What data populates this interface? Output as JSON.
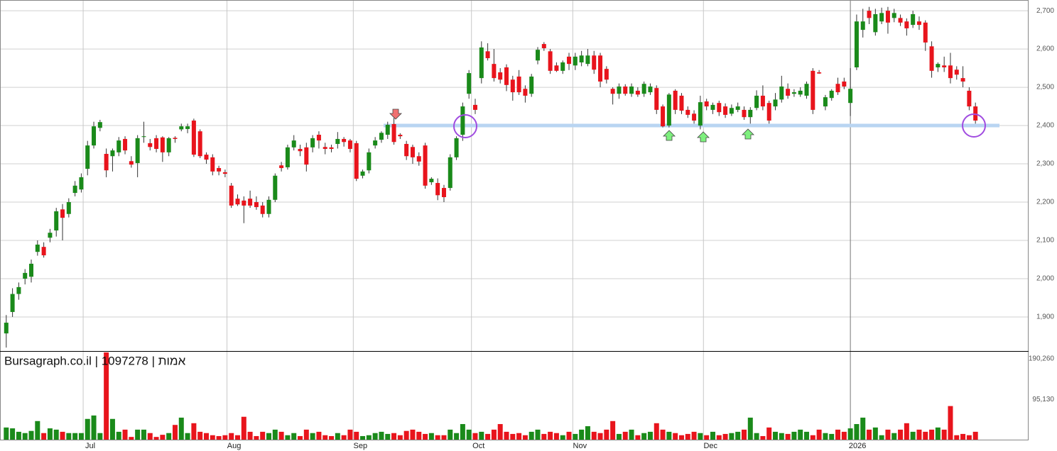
{
  "chart_data": {
    "type": "candlestick",
    "title": "Bursagraph.co.il | 1097278 | אמות",
    "up_color": "#1a8a1a",
    "down_color": "#e8141c",
    "grid": true,
    "ylim": [
      1811,
      2728
    ],
    "yticks": [
      {
        "value": 1900,
        "label": "1,900"
      },
      {
        "value": 2000,
        "label": "2,000"
      },
      {
        "value": 2100,
        "label": "2,100"
      },
      {
        "value": 2200,
        "label": "2,200"
      },
      {
        "value": 2300,
        "label": "2,300"
      },
      {
        "value": 2400,
        "label": "2,400"
      },
      {
        "value": 2500,
        "label": "2,500"
      },
      {
        "value": 2600,
        "label": "2,600"
      },
      {
        "value": 2700,
        "label": "2,700"
      }
    ],
    "xlim": [
      -1,
      163.5
    ],
    "xticks": [
      {
        "value": 12.3,
        "label": "Jul"
      },
      {
        "value": 35.3,
        "label": "Aug"
      },
      {
        "value": 55.5,
        "label": "Sep"
      },
      {
        "value": 74.4,
        "label": "Oct"
      },
      {
        "value": 90.6,
        "label": "Nov"
      },
      {
        "value": 111.5,
        "label": "Dec"
      },
      {
        "value": 135,
        "label": "2026"
      }
    ],
    "volume_ylim": [
      0,
      205000
    ],
    "volume_ticks": [
      {
        "value": 95130,
        "label": "95,130"
      },
      {
        "value": 190260,
        "label": "190,260"
      }
    ],
    "support_level": 2400,
    "open": [
      1857,
      1913,
      1960,
      2000,
      2005,
      2070,
      2083,
      2107,
      2126,
      2181,
      2169,
      2224,
      2233,
      2287,
      2348,
      2394,
      2326,
      2320,
      2330,
      2365,
      2307,
      2302,
      2370,
      2354,
      2367,
      2369,
      2330,
      2368,
      2390,
      2391,
      2413,
      2385,
      2324,
      2317,
      2289,
      2278,
      2243,
      2209,
      2204,
      2209,
      2200,
      2191,
      2169,
      2206,
      2296,
      2291,
      2343,
      2339,
      2343,
      2343,
      2376,
      2344,
      2343,
      2352,
      2365,
      2361,
      2354,
      2269,
      2283,
      2348,
      2363,
      2376,
      2404,
      2376,
      2352,
      2344,
      2320,
      2348,
      2252,
      2250,
      2237,
      2237,
      2317,
      2376,
      2483,
      2454,
      2524,
      2594,
      2561,
      2539,
      2552,
      2520,
      2528,
      2496,
      2483,
      2570,
      2613,
      2594,
      2557,
      2543,
      2580,
      2557,
      2565,
      2561,
      2583,
      2583,
      2548,
      2496,
      2483,
      2502,
      2483,
      2491,
      2483,
      2487,
      2498,
      2450,
      2400,
      2491,
      2478,
      2441,
      2431,
      2400,
      2463,
      2441,
      2459,
      2450,
      2431,
      2441,
      2441,
      2422,
      2446,
      2478,
      2459,
      2450,
      2468,
      2496,
      2483,
      2481,
      2478,
      2543,
      2539,
      2450,
      2472,
      2509,
      2515,
      2459,
      2552,
      2650,
      2700,
      2644,
      2672,
      2700,
      2681,
      2681,
      2672,
      2663,
      2672,
      2669,
      2607,
      2552,
      2557,
      2557,
      2546,
      2524,
      2491,
      2450
    ],
    "high": [
      1905,
      1975,
      1990,
      2025,
      2050,
      2100,
      2095,
      2130,
      2185,
      2195,
      2210,
      2255,
      2275,
      2360,
      2410,
      2415,
      2340,
      2340,
      2370,
      2372,
      2320,
      2375,
      2410,
      2365,
      2375,
      2372,
      2370,
      2372,
      2405,
      2405,
      2418,
      2390,
      2330,
      2325,
      2295,
      2285,
      2250,
      2220,
      2215,
      2230,
      2215,
      2200,
      2215,
      2275,
      2305,
      2350,
      2375,
      2350,
      2355,
      2375,
      2385,
      2355,
      2350,
      2383,
      2370,
      2365,
      2360,
      2285,
      2340,
      2370,
      2385,
      2410,
      2420,
      2380,
      2360,
      2350,
      2330,
      2355,
      2265,
      2262,
      2245,
      2325,
      2372,
      2460,
      2545,
      2470,
      2620,
      2615,
      2600,
      2550,
      2560,
      2530,
      2545,
      2505,
      2535,
      2605,
      2618,
      2600,
      2565,
      2570,
      2590,
      2590,
      2595,
      2600,
      2595,
      2590,
      2555,
      2500,
      2510,
      2508,
      2510,
      2500,
      2515,
      2510,
      2505,
      2455,
      2485,
      2495,
      2485,
      2450,
      2440,
      2478,
      2470,
      2460,
      2465,
      2458,
      2455,
      2460,
      2450,
      2448,
      2492,
      2505,
      2465,
      2485,
      2530,
      2510,
      2495,
      2500,
      2515,
      2550,
      2545,
      2480,
      2495,
      2525,
      2525,
      2550,
      2690,
      2705,
      2710,
      2705,
      2708,
      2710,
      2705,
      2690,
      2680,
      2700,
      2685,
      2675,
      2620,
      2565,
      2580,
      2590,
      2555,
      2555,
      2500,
      2460
    ],
    "low": [
      1820,
      1900,
      1945,
      1985,
      1990,
      2060,
      2055,
      2095,
      2110,
      2100,
      2160,
      2215,
      2225,
      2270,
      2340,
      2385,
      2265,
      2280,
      2320,
      2325,
      2290,
      2265,
      2355,
      2335,
      2330,
      2305,
      2320,
      2355,
      2385,
      2380,
      2318,
      2315,
      2300,
      2270,
      2270,
      2265,
      2185,
      2190,
      2145,
      2185,
      2180,
      2160,
      2160,
      2200,
      2280,
      2285,
      2335,
      2320,
      2280,
      2330,
      2340,
      2325,
      2330,
      2340,
      2345,
      2330,
      2255,
      2262,
      2275,
      2340,
      2355,
      2365,
      2350,
      2365,
      2310,
      2300,
      2295,
      2235,
      2245,
      2205,
      2200,
      2230,
      2310,
      2360,
      2470,
      2430,
      2510,
      2570,
      2515,
      2510,
      2490,
      2465,
      2480,
      2460,
      2475,
      2560,
      2595,
      2535,
      2540,
      2535,
      2545,
      2545,
      2555,
      2555,
      2535,
      2500,
      2510,
      2455,
      2470,
      2478,
      2475,
      2475,
      2475,
      2480,
      2430,
      2395,
      2395,
      2430,
      2430,
      2420,
      2405,
      2390,
      2440,
      2430,
      2425,
      2420,
      2425,
      2435,
      2415,
      2405,
      2440,
      2440,
      2405,
      2440,
      2460,
      2470,
      2475,
      2475,
      2470,
      2430,
      2535,
      2440,
      2465,
      2480,
      2495,
      2425,
      2545,
      2630,
      2665,
      2635,
      2665,
      2640,
      2670,
      2660,
      2635,
      2655,
      2650,
      2595,
      2525,
      2540,
      2540,
      2510,
      2520,
      2500,
      2440,
      2405
    ],
    "close": [
      1885,
      1960,
      1978,
      2015,
      2039,
      2089,
      2061,
      2120,
      2176,
      2159,
      2200,
      2243,
      2265,
      2348,
      2398,
      2409,
      2283,
      2335,
      2361,
      2335,
      2298,
      2367,
      2372,
      2344,
      2339,
      2330,
      2367,
      2365,
      2398,
      2398,
      2324,
      2320,
      2311,
      2280,
      2280,
      2274,
      2191,
      2194,
      2191,
      2191,
      2187,
      2169,
      2206,
      2269,
      2289,
      2343,
      2361,
      2333,
      2298,
      2367,
      2361,
      2339,
      2339,
      2365,
      2357,
      2339,
      2261,
      2280,
      2330,
      2361,
      2381,
      2402,
      2357,
      2372,
      2320,
      2317,
      2306,
      2243,
      2261,
      2218,
      2213,
      2317,
      2367,
      2450,
      2537,
      2441,
      2604,
      2576,
      2524,
      2520,
      2506,
      2487,
      2487,
      2478,
      2528,
      2598,
      2602,
      2543,
      2543,
      2565,
      2561,
      2580,
      2583,
      2583,
      2546,
      2515,
      2520,
      2483,
      2502,
      2483,
      2502,
      2481,
      2509,
      2502,
      2441,
      2398,
      2481,
      2441,
      2439,
      2428,
      2413,
      2461,
      2450,
      2454,
      2435,
      2428,
      2446,
      2450,
      2422,
      2441,
      2478,
      2450,
      2413,
      2468,
      2502,
      2478,
      2487,
      2491,
      2509,
      2441,
      2536,
      2474,
      2491,
      2487,
      2502,
      2496,
      2672,
      2672,
      2681,
      2691,
      2694,
      2669,
      2694,
      2669,
      2654,
      2691,
      2663,
      2617,
      2543,
      2561,
      2552,
      2524,
      2533,
      2515,
      2450,
      2413
    ],
    "volume": [
      30000,
      28000,
      20000,
      17000,
      22000,
      45000,
      17000,
      28000,
      25000,
      20000,
      17000,
      17000,
      17000,
      50000,
      58000,
      17000,
      205000,
      50000,
      20000,
      25000,
      8000,
      25000,
      25000,
      17000,
      8000,
      13000,
      17000,
      36000,
      53000,
      17000,
      40000,
      20000,
      17000,
      12000,
      10000,
      12000,
      17000,
      12000,
      55000,
      20000,
      10000,
      20000,
      17000,
      25000,
      20000,
      12000,
      17000,
      10000,
      25000,
      17000,
      20000,
      12000,
      10000,
      17000,
      12000,
      25000,
      20000,
      10000,
      12000,
      17000,
      20000,
      15000,
      17000,
      12000,
      22000,
      25000,
      20000,
      15000,
      17000,
      12000,
      12000,
      25000,
      17000,
      38000,
      25000,
      17000,
      20000,
      15000,
      25000,
      38000,
      20000,
      15000,
      17000,
      12000,
      20000,
      25000,
      15000,
      20000,
      17000,
      12000,
      20000,
      15000,
      25000,
      33000,
      20000,
      17000,
      25000,
      45000,
      15000,
      20000,
      25000,
      12000,
      17000,
      20000,
      40000,
      25000,
      20000,
      17000,
      12000,
      15000,
      20000,
      17000,
      12000,
      20000,
      12000,
      15000,
      17000,
      20000,
      25000,
      53000,
      17000,
      10000,
      30000,
      20000,
      17000,
      15000,
      20000,
      25000,
      20000,
      12000,
      25000,
      17000,
      15000,
      25000,
      20000,
      28000,
      38000,
      53000,
      25000,
      30000,
      12000,
      25000,
      17000,
      25000,
      40000,
      20000,
      25000,
      20000,
      25000,
      30000,
      25000,
      80000,
      12000,
      15000,
      12000,
      20000
    ]
  }
}
